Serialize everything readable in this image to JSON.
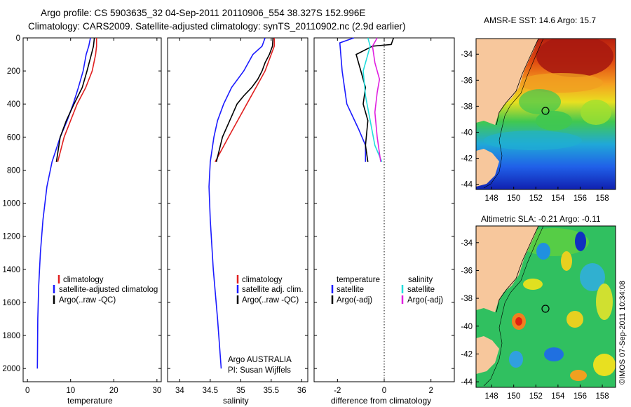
{
  "title": {
    "line1": "Argo profile: CS 5903635_32 04-Sep-2011 20110906_554 38.327S 152.996E",
    "line2": "Climatology: CARS2009. Satellite-adjusted climatology: synTS_20110902.nc (2.9d earlier)"
  },
  "depth_axis": {
    "ticks": [
      0,
      200,
      400,
      600,
      800,
      1000,
      1200,
      1400,
      1600,
      1800,
      2000
    ],
    "ylim": [
      0,
      2080
    ]
  },
  "colors": {
    "climatology": "#e02020",
    "satellite": "#1a1aff",
    "argo": "#000000",
    "satellite_sal": "#22dddd",
    "argo_sal": "#e020e0",
    "land": "#f7c79c"
  },
  "chart_data": [
    {
      "type": "line",
      "xlabel": "temperature",
      "xlim": [
        -1,
        31
      ],
      "xticks": [
        0,
        10,
        20,
        30
      ],
      "series": [
        {
          "name": "climatology",
          "color_key": "climatology",
          "points": [
            [
              16,
              0
            ],
            [
              16,
              50
            ],
            [
              15.8,
              100
            ],
            [
              15,
              200
            ],
            [
              13.5,
              300
            ],
            [
              11.5,
              400
            ],
            [
              10,
              500
            ],
            [
              8.5,
              600
            ],
            [
              7,
              750
            ]
          ]
        },
        {
          "name": "satellite-adjusted climatology",
          "color_key": "satellite",
          "points": [
            [
              14.6,
              0
            ],
            [
              14.2,
              50
            ],
            [
              13.6,
              100
            ],
            [
              12.9,
              200
            ],
            [
              11.8,
              300
            ],
            [
              10.6,
              400
            ],
            [
              9.2,
              500
            ],
            [
              7.6,
              600
            ],
            [
              5.7,
              750
            ],
            [
              4.5,
              900
            ],
            [
              3.6,
              1100
            ],
            [
              3,
              1300
            ],
            [
              2.6,
              1500
            ],
            [
              2.4,
              1700
            ],
            [
              2.3,
              2000
            ]
          ]
        },
        {
          "name": "Argo(..raw -QC)",
          "color_key": "argo",
          "points": [
            [
              15.5,
              0
            ],
            [
              15.3,
              50
            ],
            [
              14.8,
              100
            ],
            [
              13.8,
              200
            ],
            [
              12.7,
              300
            ],
            [
              10.8,
              400
            ],
            [
              9,
              500
            ],
            [
              7.6,
              600
            ],
            [
              6.7,
              750
            ]
          ]
        }
      ],
      "legend": [
        "climatology",
        "satellite-adjusted climatolog",
        "Argo(..raw -QC)"
      ]
    },
    {
      "type": "line",
      "xlabel": "salinity",
      "xlim": [
        33.8,
        36.1
      ],
      "xticks": [
        34,
        34.5,
        35,
        35.5,
        36
      ],
      "series": [
        {
          "name": "climatology",
          "color_key": "climatology",
          "points": [
            [
              35.55,
              0
            ],
            [
              35.55,
              50
            ],
            [
              35.5,
              100
            ],
            [
              35.4,
              200
            ],
            [
              35.25,
              300
            ],
            [
              35.1,
              400
            ],
            [
              34.95,
              500
            ],
            [
              34.8,
              600
            ],
            [
              34.58,
              750
            ]
          ]
        },
        {
          "name": "satellite adj. clim.",
          "color_key": "satellite",
          "points": [
            [
              35.4,
              0
            ],
            [
              35.35,
              50
            ],
            [
              35.2,
              100
            ],
            [
              35.05,
              200
            ],
            [
              34.85,
              300
            ],
            [
              34.72,
              400
            ],
            [
              34.62,
              500
            ],
            [
              34.56,
              600
            ],
            [
              34.5,
              750
            ],
            [
              34.48,
              900
            ],
            [
              34.5,
              1100
            ],
            [
              34.55,
              1400
            ],
            [
              34.62,
              1700
            ],
            [
              34.68,
              2000
            ]
          ]
        },
        {
          "name": "Argo(..raw -QC)",
          "color_key": "argo",
          "points": [
            [
              35.53,
              0
            ],
            [
              35.52,
              50
            ],
            [
              35.47,
              100
            ],
            [
              35.4,
              150
            ],
            [
              35.35,
              200
            ],
            [
              35.28,
              250
            ],
            [
              35.18,
              300
            ],
            [
              35.05,
              350
            ],
            [
              34.94,
              400
            ],
            [
              34.82,
              500
            ],
            [
              34.7,
              600
            ],
            [
              34.6,
              750
            ]
          ]
        }
      ],
      "legend": [
        "climatology",
        "satellite adj. clim.",
        "Argo(..raw -QC)"
      ],
      "annotation": [
        "Argo AUSTRALIA",
        "PI: Susan Wijffels"
      ]
    },
    {
      "type": "line",
      "xlabel": "difference from climatology",
      "xlim": [
        -3,
        3
      ],
      "xticks": [
        -2,
        0,
        2
      ],
      "series": [
        {
          "name": "temperature satellite",
          "color_key": "satellite",
          "points": [
            [
              -1.3,
              0
            ],
            [
              -1.9,
              30
            ],
            [
              -1.8,
              200
            ],
            [
              -1.6,
              400
            ],
            [
              -1.1,
              550
            ],
            [
              -0.8,
              650
            ],
            [
              -0.8,
              750
            ]
          ]
        },
        {
          "name": "temperature Argo(-adj)",
          "color_key": "argo",
          "points": [
            [
              0.4,
              0
            ],
            [
              0.3,
              40
            ],
            [
              -0.5,
              50
            ],
            [
              -1.2,
              100
            ],
            [
              -1,
              200
            ],
            [
              -0.8,
              300
            ],
            [
              -0.9,
              400
            ],
            [
              -0.7,
              500
            ],
            [
              -0.8,
              650
            ],
            [
              -0.7,
              750
            ]
          ]
        },
        {
          "name": "salinity satellite",
          "color_key": "satellite_sal",
          "points": [
            [
              -0.7,
              0
            ],
            [
              -0.6,
              50
            ],
            [
              -0.9,
              200
            ],
            [
              -0.8,
              350
            ],
            [
              -0.6,
              500
            ],
            [
              -0.4,
              650
            ],
            [
              -0.1,
              750
            ]
          ]
        },
        {
          "name": "salinity Argo(-adj)",
          "color_key": "argo_sal",
          "points": [
            [
              -0.3,
              0
            ],
            [
              -0.5,
              50
            ],
            [
              -0.4,
              150
            ],
            [
              -0.2,
              250
            ],
            [
              -0.3,
              330
            ],
            [
              -0.4,
              450
            ],
            [
              -0.3,
              600
            ],
            [
              -0.15,
              750
            ]
          ]
        }
      ],
      "legend_headers": [
        "temperature",
        "salinity"
      ],
      "legend": [
        "satellite",
        "Argo(-adj)",
        "satellite",
        "Argo(-adj)"
      ]
    }
  ],
  "maps": [
    {
      "title": "AMSR-E SST: 14.6 Argo: 15.7",
      "yticks": [
        -34,
        -36,
        -38,
        -40,
        -42,
        -44
      ],
      "xticks": [
        148,
        150,
        152,
        154,
        156,
        158
      ],
      "xlim": [
        146.6,
        159.2
      ],
      "ylim": [
        -44.4,
        -32.8
      ],
      "float_lon": 152.996,
      "float_lat": -38.327
    },
    {
      "title": "Altimetric SLA: -0.21 Argo: -0.11",
      "yticks": [
        -34,
        -36,
        -38,
        -40,
        -42,
        -44
      ],
      "xticks": [
        148,
        150,
        152,
        154,
        156,
        158
      ],
      "xlim": [
        146.6,
        159.2
      ],
      "ylim": [
        -44.4,
        -32.8
      ],
      "float_lon": 152.996,
      "float_lat": -38.327
    }
  ],
  "timestamp": "©IMOS 07-Sep-2011 10:34:08"
}
